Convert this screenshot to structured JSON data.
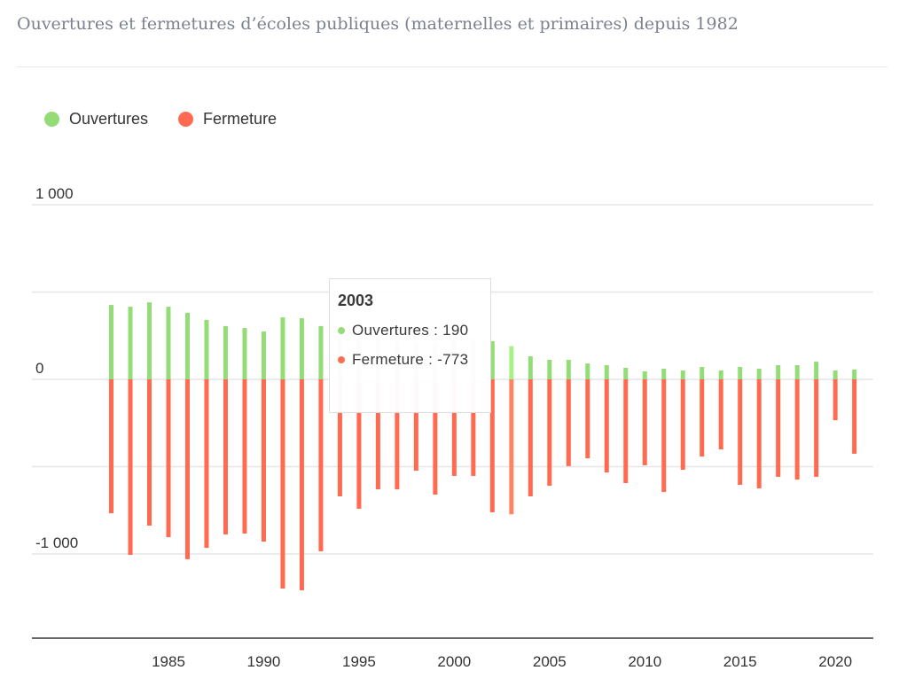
{
  "title": "Ouvertures et fermetures d’écoles publiques (maternelles et primaires) depuis 1982",
  "chart_data": {
    "type": "bar",
    "title": "Ouvertures et fermetures d’écoles publiques (maternelles et primaires) depuis 1982",
    "xlabel": "",
    "ylabel": "",
    "ylim": [
      -1500,
      1000
    ],
    "yticks": [
      {
        "v": 1000,
        "label": "1 000"
      },
      {
        "v": 500,
        "label": ""
      },
      {
        "v": 0,
        "label": "0"
      },
      {
        "v": -500,
        "label": ""
      },
      {
        "v": -1000,
        "label": "-1 000"
      }
    ],
    "xticks": [
      1985,
      1990,
      1995,
      2000,
      2005,
      2010,
      2015,
      2020
    ],
    "x": [
      1982,
      1983,
      1984,
      1985,
      1986,
      1987,
      1988,
      1989,
      1990,
      1991,
      1992,
      1993,
      1994,
      1995,
      1996,
      1997,
      1998,
      1999,
      2000,
      2001,
      2002,
      2003,
      2004,
      2005,
      2006,
      2007,
      2008,
      2009,
      2010,
      2011,
      2012,
      2013,
      2014,
      2015,
      2016,
      2017,
      2018,
      2019,
      2020,
      2021
    ],
    "series": [
      {
        "name": "Ouvertures",
        "color": "#93dc76",
        "values": [
          426,
          416,
          441,
          416,
          381,
          340,
          305,
          294,
          274,
          355,
          350,
          305,
          260,
          240,
          230,
          215,
          205,
          210,
          220,
          230,
          218,
          190,
          132,
          112,
          112,
          91,
          81,
          66,
          46,
          61,
          51,
          71,
          51,
          71,
          61,
          81,
          81,
          101,
          51,
          56
        ]
      },
      {
        "name": "Fermeture",
        "color": "#ff6a50",
        "values": [
          -767,
          -1005,
          -838,
          -904,
          -1030,
          -965,
          -888,
          -883,
          -929,
          -1198,
          -1208,
          -985,
          -670,
          -741,
          -630,
          -630,
          -523,
          -660,
          -553,
          -553,
          -761,
          -773,
          -670,
          -609,
          -497,
          -452,
          -533,
          -594,
          -492,
          -645,
          -518,
          -442,
          -401,
          -604,
          -624,
          -558,
          -574,
          -558,
          -234,
          -426
        ]
      }
    ],
    "legend": "top-left",
    "highlight_year": 2003
  },
  "tooltip": {
    "year": "2003",
    "open_label": "Ouvertures : 190",
    "close_label": "Fermeture : -773"
  }
}
